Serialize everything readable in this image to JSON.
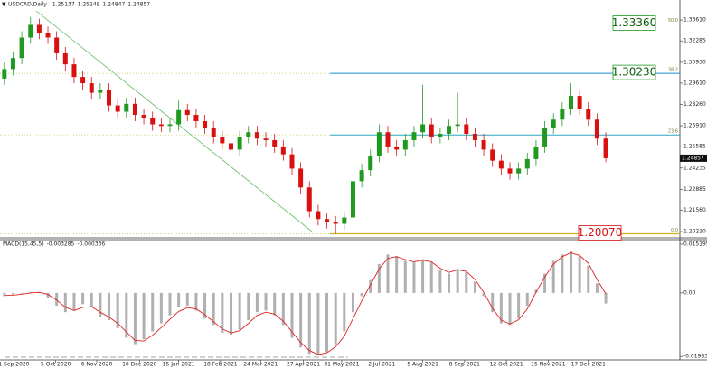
{
  "chart_data": [
    {
      "type": "candlestick",
      "symbol": "USDCAD,Daily",
      "header_values": [
        1.25137,
        1.25249,
        1.24847,
        1.24857
      ],
      "xlim": [
        -0.5,
        77.5
      ],
      "ylim": [
        1.1987,
        1.3476
      ],
      "yticks": [
        {
          "value": 1.3361,
          "label": "1.33610"
        },
        1.32285,
        {
          "value": 1.3093,
          "label": "1.30930"
        },
        {
          "value": 1.2961,
          "label": "1.29610"
        },
        {
          "value": 1.2826,
          "label": "1.28260"
        },
        {
          "value": 1.2691,
          "label": "1.26910"
        },
        1.25585,
        1.24235,
        1.22885,
        {
          "value": 1.2156,
          "label": "1.21560"
        },
        {
          "value": 1.2021,
          "label": "1.20210"
        }
      ],
      "up_color": "#1f9a1f",
      "down_color": "#d81010",
      "open": [
        1.299,
        1.305,
        1.312,
        1.325,
        1.333,
        1.328,
        1.325,
        1.315,
        1.308,
        1.3,
        1.296,
        1.29,
        1.292,
        1.282,
        1.278,
        1.283,
        1.276,
        1.274,
        1.27,
        1.269,
        1.27,
        1.279,
        1.276,
        1.272,
        1.268,
        1.262,
        1.258,
        1.254,
        1.262,
        1.265,
        1.261,
        1.26,
        1.256,
        1.251,
        1.242,
        1.23,
        1.215,
        1.21,
        1.208,
        1.207,
        1.211,
        1.234,
        1.241,
        1.25,
        1.265,
        1.256,
        1.254,
        1.26,
        1.265,
        1.27,
        1.262,
        1.264,
        1.269,
        1.27,
        1.264,
        1.26,
        1.254,
        1.247,
        1.242,
        1.239,
        1.242,
        1.248,
        1.256,
        1.268,
        1.273,
        1.28,
        1.288,
        1.28,
        1.273,
        1.261
      ],
      "high": [
        1.309,
        1.316,
        1.329,
        1.338,
        1.337,
        1.332,
        1.329,
        1.319,
        1.312,
        1.304,
        1.3,
        1.296,
        1.296,
        1.286,
        1.287,
        1.287,
        1.28,
        1.278,
        1.274,
        1.274,
        1.285,
        1.283,
        1.28,
        1.276,
        1.272,
        1.266,
        1.262,
        1.266,
        1.269,
        1.269,
        1.265,
        1.264,
        1.26,
        1.255,
        1.246,
        1.234,
        1.219,
        1.214,
        1.212,
        1.215,
        1.238,
        1.245,
        1.254,
        1.27,
        1.269,
        1.26,
        1.264,
        1.269,
        1.295,
        1.274,
        1.268,
        1.273,
        1.29,
        1.274,
        1.268,
        1.264,
        1.258,
        1.251,
        1.246,
        1.246,
        1.252,
        1.26,
        1.272,
        1.277,
        1.284,
        1.296,
        1.292,
        1.284,
        1.277,
        1.265
      ],
      "low": [
        1.295,
        1.301,
        1.308,
        1.321,
        1.324,
        1.321,
        1.311,
        1.304,
        1.296,
        1.292,
        1.286,
        1.286,
        1.278,
        1.274,
        1.274,
        1.272,
        1.27,
        1.266,
        1.265,
        1.265,
        1.266,
        1.272,
        1.268,
        1.264,
        1.258,
        1.254,
        1.25,
        1.25,
        1.258,
        1.257,
        1.256,
        1.252,
        1.247,
        1.238,
        1.226,
        1.211,
        1.206,
        1.204,
        1.2007,
        1.203,
        1.207,
        1.23,
        1.237,
        1.246,
        1.252,
        1.25,
        1.25,
        1.256,
        1.261,
        1.258,
        1.258,
        1.26,
        1.265,
        1.26,
        1.256,
        1.25,
        1.243,
        1.238,
        1.235,
        1.235,
        1.238,
        1.244,
        1.252,
        1.264,
        1.269,
        1.276,
        1.276,
        1.269,
        1.257,
        1.246
      ],
      "close": [
        1.305,
        1.312,
        1.325,
        1.333,
        1.328,
        1.325,
        1.315,
        1.308,
        1.3,
        1.296,
        1.29,
        1.292,
        1.282,
        1.278,
        1.283,
        1.276,
        1.274,
        1.27,
        1.269,
        1.27,
        1.279,
        1.276,
        1.272,
        1.268,
        1.262,
        1.258,
        1.254,
        1.262,
        1.265,
        1.261,
        1.26,
        1.256,
        1.251,
        1.242,
        1.23,
        1.215,
        1.21,
        1.208,
        1.207,
        1.211,
        1.234,
        1.241,
        1.25,
        1.265,
        1.256,
        1.254,
        1.26,
        1.265,
        1.27,
        1.262,
        1.264,
        1.269,
        1.27,
        1.264,
        1.26,
        1.254,
        1.247,
        1.242,
        1.239,
        1.242,
        1.248,
        1.256,
        1.268,
        1.273,
        1.28,
        1.288,
        1.28,
        1.273,
        1.261,
        1.24857
      ],
      "fib_levels": [
        {
          "ratio": "50.0",
          "price": {
            "value": 1.3336,
            "label": "1.33360"
          },
          "color": "#1aa39a"
        },
        {
          "ratio": "38.2",
          "price": {
            "value": 1.3023,
            "label": "1.30230"
          },
          "color": "#1a8fd0"
        },
        {
          "ratio": "23.6",
          "price": 1.2633,
          "color": "#2aa7c0"
        },
        {
          "ratio": "0.0",
          "price": {
            "value": 1.2007,
            "label": "1.20070"
          },
          "color": "#d4b020"
        }
      ]
    },
    {
      "type": "macd",
      "label": "MACD(15,45,5)",
      "header_values": [
        -0.003285,
        -0.000336
      ],
      "xlim": [
        -0.5,
        77.5
      ],
      "ylim": [
        -0.0209,
        0.0166
      ],
      "yticks": [
        0.015195,
        {
          "value": 0,
          "label": "0.00"
        },
        -0.019835
      ],
      "xticks": [
        {
          "value": 1.1,
          "label": "1 Sep 2020"
        },
        {
          "value": 5.9,
          "label": "5 Oct 2020"
        },
        {
          "value": 10.6,
          "label": "6 Nov 2020"
        },
        {
          "value": 15.5,
          "label": "10 Dec 2020"
        },
        {
          "value": 20.0,
          "label": "15 Jan 2021"
        },
        {
          "value": 24.8,
          "label": "18 Feb 2021"
        },
        {
          "value": 29.4,
          "label": "24 Mar 2021"
        },
        {
          "value": 34.3,
          "label": "27 Apr 2021"
        },
        {
          "value": 38.7,
          "label": "31 May 2021"
        },
        {
          "value": 43.3,
          "label": "2 Jul 2021"
        },
        {
          "value": 48.0,
          "label": "5 Aug 2021"
        },
        {
          "value": 52.8,
          "label": "8 Sep 2021"
        },
        {
          "value": 57.6,
          "label": "12 Oct 2021"
        },
        {
          "value": 62.4,
          "label": "15 Nov 2021"
        },
        {
          "value": 67.0,
          "label": "17 Dec 2021"
        }
      ],
      "series": [
        {
          "color": "#b0b0b0",
          "values": [
            -0.001,
            -0.0005,
            -0.0002,
            0.0002,
            0.0003,
            -0.0015,
            -0.004,
            -0.006,
            -0.0055,
            -0.0035,
            -0.0045,
            -0.0075,
            -0.0085,
            -0.011,
            -0.014,
            -0.016,
            -0.0145,
            -0.012,
            -0.0095,
            -0.007,
            -0.0045,
            -0.004,
            -0.0055,
            -0.008,
            -0.01,
            -0.0125,
            -0.013,
            -0.0115,
            -0.0085,
            -0.006,
            -0.0055,
            -0.007,
            -0.01,
            -0.014,
            -0.017,
            -0.019,
            -0.0195,
            -0.0185,
            -0.016,
            -0.012,
            -0.006,
            -0.001,
            0.004,
            0.009,
            0.012,
            0.0115,
            0.01,
            0.0095,
            0.0105,
            0.0095,
            0.007,
            0.006,
            0.0075,
            0.0065,
            0.0035,
            -0.001,
            -0.006,
            -0.0095,
            -0.01,
            -0.008,
            -0.004,
            0.001,
            0.006,
            0.01,
            0.012,
            0.013,
            0.0115,
            0.0085,
            0.003,
            -0.0033
          ]
        },
        {
          "color": "#e02020",
          "values": [
            -0.0008,
            -0.0007,
            -0.0004,
            0.0,
            0.0002,
            -0.0005,
            -0.0022,
            -0.0045,
            -0.0055,
            -0.0045,
            -0.0043,
            -0.006,
            -0.0075,
            -0.0095,
            -0.0122,
            -0.0148,
            -0.015,
            -0.0132,
            -0.0108,
            -0.0082,
            -0.0058,
            -0.0046,
            -0.005,
            -0.0068,
            -0.009,
            -0.0112,
            -0.0125,
            -0.0118,
            -0.0095,
            -0.007,
            -0.006,
            -0.0066,
            -0.0088,
            -0.0122,
            -0.0155,
            -0.018,
            -0.0192,
            -0.0187,
            -0.0168,
            -0.0135,
            -0.008,
            -0.0025,
            0.0025,
            0.0075,
            0.0108,
            0.0113,
            0.0104,
            0.0097,
            0.0102,
            0.0097,
            0.0077,
            0.0064,
            0.0072,
            0.0067,
            0.0042,
            0.0002,
            -0.0048,
            -0.0085,
            -0.0097,
            -0.0084,
            -0.005,
            0.0002,
            0.005,
            0.009,
            0.0113,
            0.0125,
            0.0117,
            0.0092,
            0.0042,
            -0.0003
          ]
        }
      ]
    }
  ]
}
